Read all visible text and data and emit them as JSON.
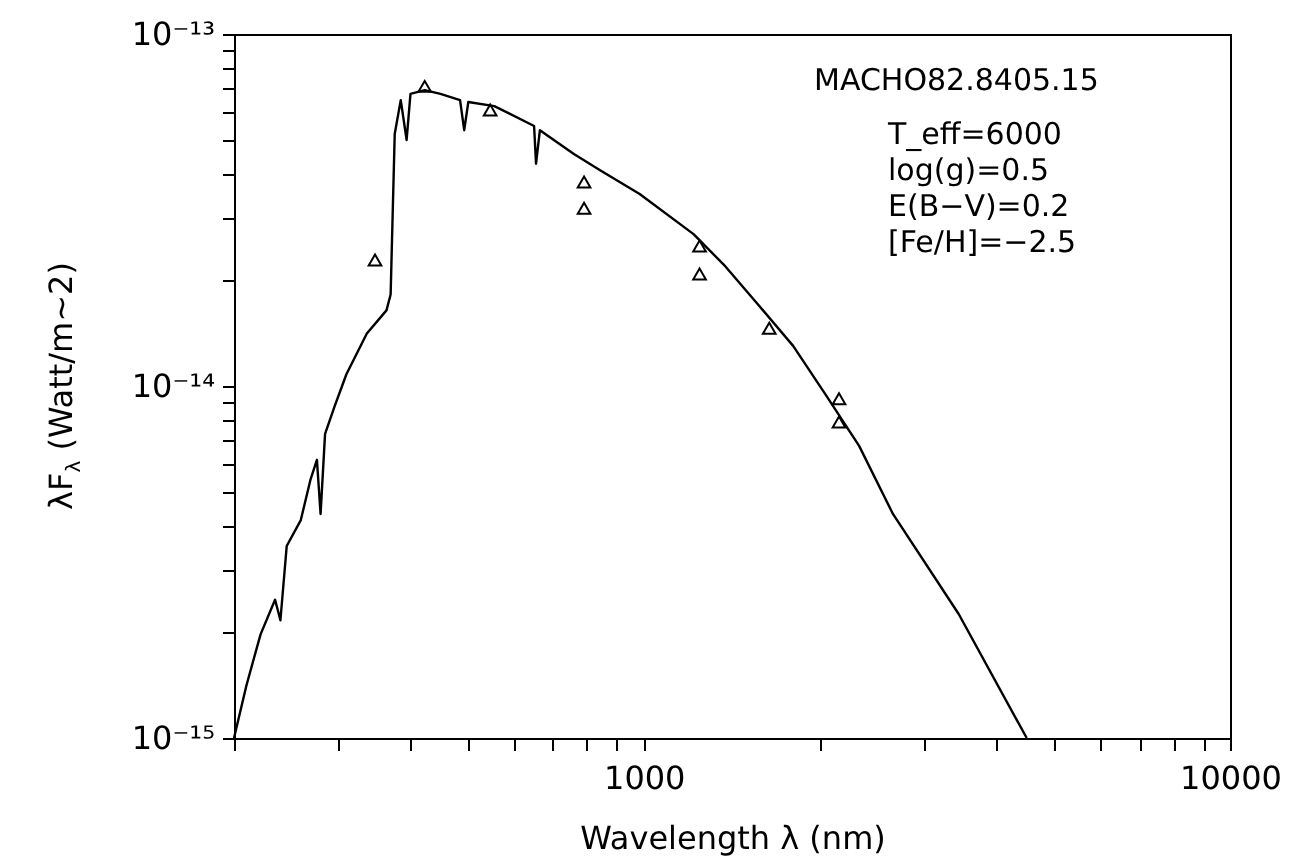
{
  "chart_data": {
    "type": "line",
    "xlabel": "Wavelength  λ  (nm)",
    "ylabel": "λF$_{λ}$  (Watt/m~2)",
    "annotations": [
      "MACHO82.8405.15",
      "T_eff=6000",
      "log(g)=0.5",
      "E(B−V)=0.2",
      "[Fe/H]=−2.5"
    ],
    "log": "xy",
    "grid": false,
    "xlim": [
      200,
      10000
    ],
    "ylim": [
      1e-15,
      1e-13
    ],
    "xticks": [
      {
        "value": 200,
        "label": null
      },
      {
        "value": 300,
        "label": null
      },
      {
        "value": 400,
        "label": null
      },
      {
        "value": 500,
        "label": null
      },
      {
        "value": 600,
        "label": null
      },
      {
        "value": 700,
        "label": null
      },
      {
        "value": 800,
        "label": null
      },
      {
        "value": 900,
        "label": null
      },
      1000,
      {
        "value": 2000,
        "label": null
      },
      {
        "value": 3000,
        "label": null
      },
      {
        "value": 4000,
        "label": null
      },
      {
        "value": 5000,
        "label": null
      },
      {
        "value": 6000,
        "label": null
      },
      {
        "value": 7000,
        "label": null
      },
      {
        "value": 8000,
        "label": null
      },
      {
        "value": 9000,
        "label": null
      },
      10000
    ],
    "yticks": [
      {
        "value": 1e-15,
        "label": "10⁻¹⁵"
      },
      {
        "value": 2e-15,
        "label": null
      },
      {
        "value": 3e-15,
        "label": null
      },
      {
        "value": 4e-15,
        "label": null
      },
      {
        "value": 5e-15,
        "label": null
      },
      {
        "value": 6e-15,
        "label": null
      },
      {
        "value": 7e-15,
        "label": null
      },
      {
        "value": 8e-15,
        "label": null
      },
      {
        "value": 9e-15,
        "label": null
      },
      {
        "value": 1e-14,
        "label": "10⁻¹⁴"
      },
      {
        "value": 2e-14,
        "label": null
      },
      {
        "value": 3e-14,
        "label": null
      },
      {
        "value": 4e-14,
        "label": null
      },
      {
        "value": 5e-14,
        "label": null
      },
      {
        "value": 6e-14,
        "label": null
      },
      {
        "value": 7e-14,
        "label": null
      },
      {
        "value": 8e-14,
        "label": null
      },
      {
        "value": 9e-14,
        "label": null
      },
      {
        "value": 1e-13,
        "label": "10⁻¹³"
      }
    ],
    "series": [
      {
        "type": "line",
        "marker": "none",
        "line_style": "solid",
        "color": "#000000",
        "x": [
          200,
          210,
          222,
          235,
          240,
          246,
          260,
          270,
          277,
          281,
          286,
          297,
          311,
          337,
          364,
          370,
          376,
          385,
          394,
          400,
          423,
          450,
          486,
          494,
          502,
          556,
          650,
          655,
          665,
          760,
          841,
          984,
          1216,
          1377,
          1573,
          1798,
          2040,
          2330,
          2661,
          3445,
          4500
        ],
        "values": [
          1e-15,
          1.41e-15,
          1.97e-15,
          2.47e-15,
          2.16e-15,
          3.51e-15,
          4.16e-15,
          5.41e-15,
          6.17e-15,
          4.33e-15,
          7.31e-15,
          8.77e-15,
          1.08e-14,
          1.41e-14,
          1.64e-14,
          1.82e-14,
          5.2e-14,
          6.49e-14,
          5e-14,
          6.76e-14,
          6.93e-14,
          6.76e-14,
          6.49e-14,
          5.33e-14,
          6.41e-14,
          6.24e-14,
          5.48e-14,
          4.28e-14,
          5.33e-14,
          4.56e-14,
          4.11e-14,
          3.51e-14,
          2.7e-14,
          2.19e-14,
          1.69e-14,
          1.3e-14,
          9.48e-15,
          6.76e-15,
          4.33e-15,
          2.25e-15,
          1e-15
        ]
      },
      {
        "type": "scatter",
        "marker": "triangle",
        "color": "#000000",
        "x": [
          348,
          423,
          547,
          791,
          791,
          1245,
          1245,
          1637,
          2153,
          2153
        ],
        "values": [
          2.28e-14,
          7.1e-14,
          6.08e-14,
          3.8e-14,
          3.2e-14,
          2.5e-14,
          2.08e-14,
          1.46e-14,
          9.2e-15,
          7.9e-15
        ]
      }
    ]
  }
}
